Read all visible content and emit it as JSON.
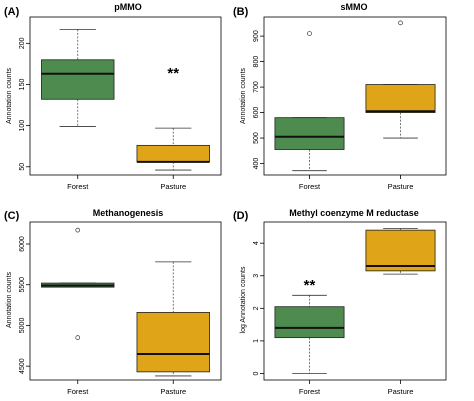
{
  "chart_data": [
    {
      "type": "box",
      "panel_label": "(A)",
      "title": "pMMO",
      "ylabel": "Annotation counts",
      "ylim": [
        40,
        232
      ],
      "yticks": [
        50,
        100,
        150,
        200
      ],
      "categories": [
        "Forest",
        "Pasture"
      ],
      "boxes": [
        {
          "category": "Forest",
          "min": 99,
          "q1": 132,
          "median": 163,
          "q3": 180,
          "max": 217,
          "outliers": [],
          "color": "#4e8b4e"
        },
        {
          "category": "Pasture",
          "min": 46,
          "q1": 56,
          "median": 56,
          "q3": 76,
          "max": 97,
          "outliers": [],
          "color": "#e0a418"
        }
      ],
      "annotations": [
        {
          "text": "**",
          "x": "Pasture",
          "y": 165
        }
      ]
    },
    {
      "type": "box",
      "panel_label": "(B)",
      "title": "sMMO",
      "ylabel": "Annotation counts",
      "ylim": [
        355,
        975
      ],
      "yticks": [
        400,
        500,
        600,
        700,
        800,
        900
      ],
      "categories": [
        "Forest",
        "Pasture"
      ],
      "boxes": [
        {
          "category": "Forest",
          "min": 372,
          "q1": 455,
          "median": 505,
          "q3": 580,
          "max": 580,
          "outliers": [
            910
          ],
          "color": "#4e8b4e"
        },
        {
          "category": "Pasture",
          "min": 500,
          "q1": 600,
          "median": 605,
          "q3": 710,
          "max": 710,
          "outliers": [
            952
          ],
          "color": "#e0a418"
        }
      ],
      "annotations": []
    },
    {
      "type": "box",
      "panel_label": "(C)",
      "title": "Methanogenesis",
      "ylabel": "Annotation counts",
      "ylim": [
        4330,
        6270
      ],
      "yticks": [
        4500,
        5000,
        5500,
        6000
      ],
      "categories": [
        "Forest",
        "Pasture"
      ],
      "boxes": [
        {
          "category": "Forest",
          "min": 5470,
          "q1": 5470,
          "median": 5490,
          "q3": 5520,
          "max": 5520,
          "outliers": [
            6170,
            4850
          ],
          "color": "#4e8b4e"
        },
        {
          "category": "Pasture",
          "min": 4380,
          "q1": 4430,
          "median": 4650,
          "q3": 5160,
          "max": 5780,
          "outliers": [],
          "color": "#e0a418"
        }
      ],
      "annotations": []
    },
    {
      "type": "box",
      "panel_label": "(D)",
      "title": "Methyl coenzyme M reductase",
      "ylabel": "log Annotation counts",
      "ylim": [
        -0.2,
        4.65
      ],
      "yticks": [
        0,
        1,
        2,
        3,
        4
      ],
      "categories": [
        "Forest",
        "Pasture"
      ],
      "boxes": [
        {
          "category": "Forest",
          "min": 0,
          "q1": 1.1,
          "median": 1.4,
          "q3": 2.05,
          "max": 2.4,
          "outliers": [],
          "color": "#4e8b4e"
        },
        {
          "category": "Pasture",
          "min": 3.05,
          "q1": 3.15,
          "median": 3.3,
          "q3": 4.4,
          "max": 4.45,
          "outliers": [],
          "color": "#e0a418"
        }
      ],
      "annotations": [
        {
          "text": "**",
          "x": "Forest",
          "y": 2.75
        }
      ]
    }
  ]
}
